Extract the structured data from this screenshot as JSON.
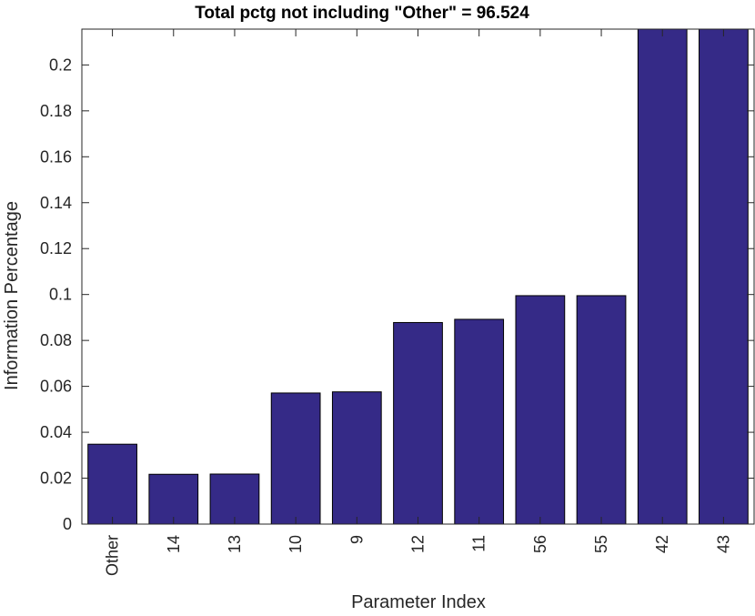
{
  "chart_data": {
    "type": "bar",
    "title": "Total pctg not including \"Other\" = 96.524",
    "xlabel": "Parameter Index",
    "ylabel": "Information Percentage",
    "categories": [
      "Other",
      "14",
      "13",
      "10",
      "9",
      "12",
      "11",
      "56",
      "55",
      "42",
      "43"
    ],
    "values": [
      0.0348,
      0.0217,
      0.0218,
      0.0571,
      0.0576,
      0.0878,
      0.0892,
      0.0995,
      0.0995,
      0.2156,
      0.2156
    ],
    "ylim": [
      0,
      0.2156
    ],
    "yticks": [
      0,
      0.02,
      0.04,
      0.06,
      0.08,
      0.1,
      0.12,
      0.14,
      0.16,
      0.18,
      0.2
    ],
    "ytick_labels": [
      "0",
      "0.02",
      "0.04",
      "0.06",
      "0.08",
      "0.1",
      "0.12",
      "0.14",
      "0.16",
      "0.18",
      "0.2"
    ],
    "bar_color": "#352a87",
    "grid": false,
    "legend": "none"
  }
}
